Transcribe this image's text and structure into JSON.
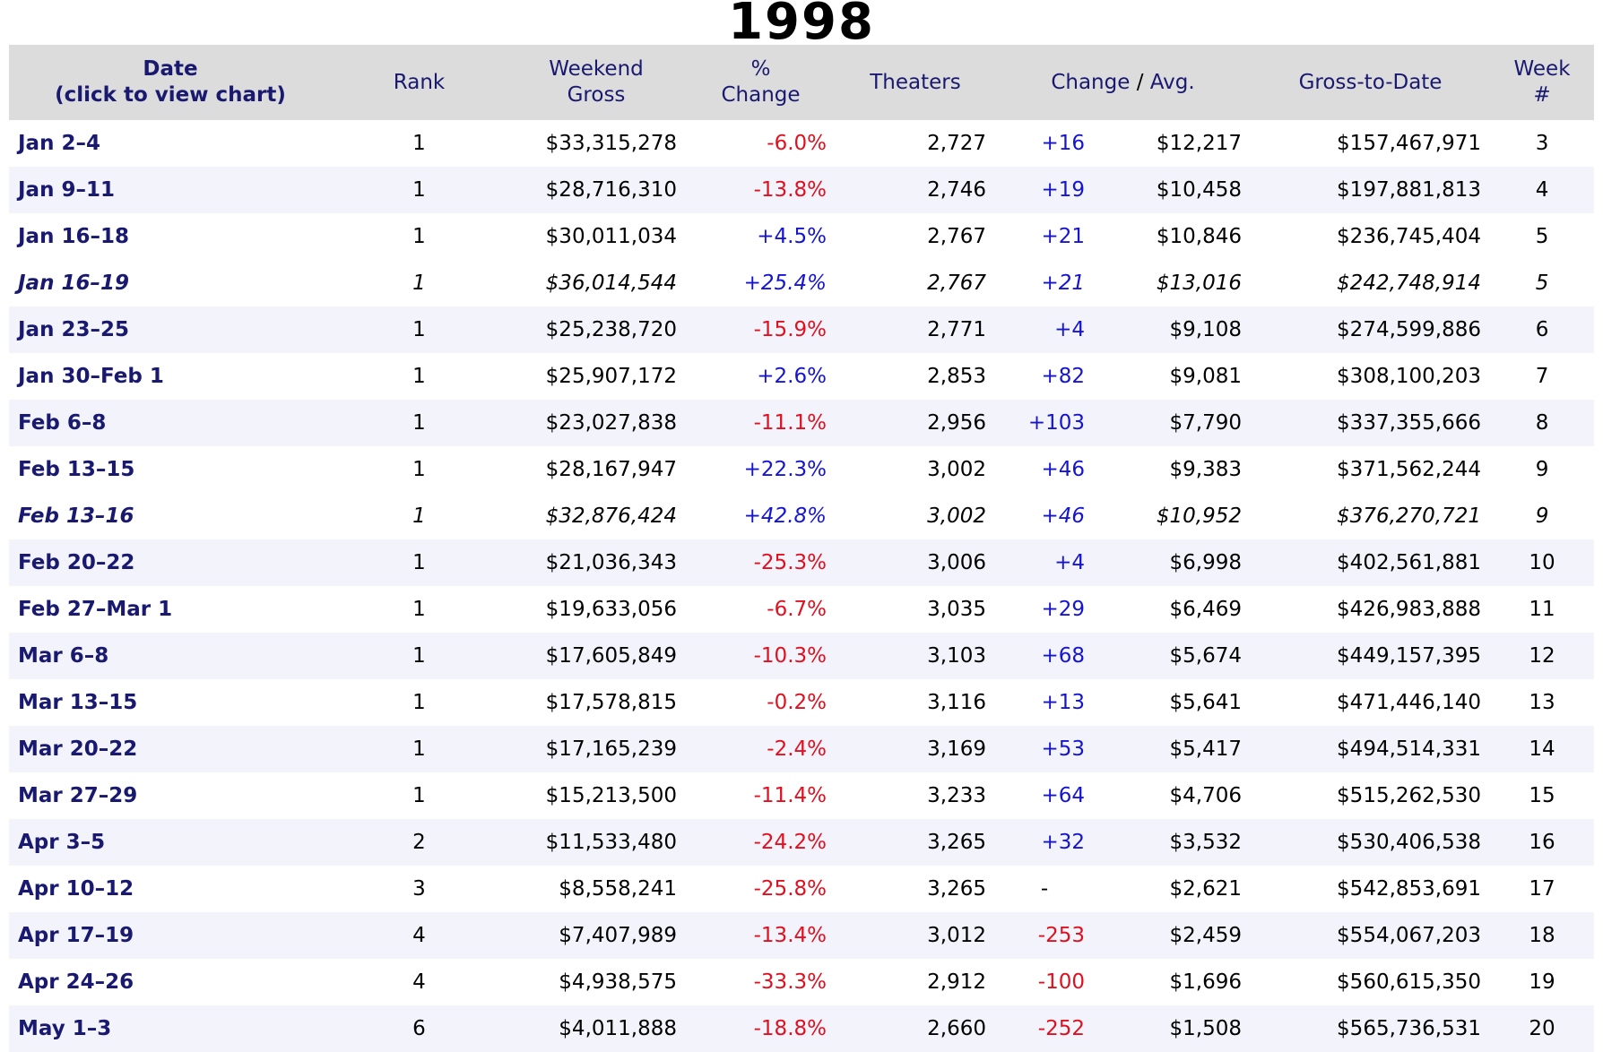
{
  "title": "1998",
  "colors": {
    "navy": "#191970",
    "pos": "#1414d2",
    "neg": "#e01020",
    "header-bg": "#dcdcdc",
    "stripe-bg": "#f3f3fb"
  },
  "columns": {
    "date": {
      "line1": "Date",
      "line2": "(click to view chart)"
    },
    "rank": "Rank",
    "weekend_gross": {
      "line1": "Weekend",
      "line2": "Gross"
    },
    "pct_change": {
      "line1": "%",
      "line2": "Change"
    },
    "theaters": "Theaters",
    "change_avg": {
      "change": "Change",
      "slash": " / ",
      "avg": "Avg."
    },
    "gross_to_date": "Gross-to-Date",
    "week": {
      "line1": "Week",
      "line2": "#"
    }
  },
  "rows": [
    {
      "date": "Jan 2–4",
      "rank": "1",
      "weekend_gross": "$33,315,278",
      "pct_change": "-6.0%",
      "theaters": "2,727",
      "change": "+16",
      "avg": "$12,217",
      "gross_to_date": "$157,467,971",
      "week": "3",
      "italic": false
    },
    {
      "date": "Jan 9–11",
      "rank": "1",
      "weekend_gross": "$28,716,310",
      "pct_change": "-13.8%",
      "theaters": "2,746",
      "change": "+19",
      "avg": "$10,458",
      "gross_to_date": "$197,881,813",
      "week": "4",
      "italic": false
    },
    {
      "date": "Jan 16–18",
      "rank": "1",
      "weekend_gross": "$30,011,034",
      "pct_change": "+4.5%",
      "theaters": "2,767",
      "change": "+21",
      "avg": "$10,846",
      "gross_to_date": "$236,745,404",
      "week": "5",
      "italic": false
    },
    {
      "date": "Jan 16–19",
      "rank": "1",
      "weekend_gross": "$36,014,544",
      "pct_change": "+25.4%",
      "theaters": "2,767",
      "change": "+21",
      "avg": "$13,016",
      "gross_to_date": "$242,748,914",
      "week": "5",
      "italic": true
    },
    {
      "date": "Jan 23–25",
      "rank": "1",
      "weekend_gross": "$25,238,720",
      "pct_change": "-15.9%",
      "theaters": "2,771",
      "change": "+4",
      "avg": "$9,108",
      "gross_to_date": "$274,599,886",
      "week": "6",
      "italic": false
    },
    {
      "date": "Jan 30–Feb 1",
      "rank": "1",
      "weekend_gross": "$25,907,172",
      "pct_change": "+2.6%",
      "theaters": "2,853",
      "change": "+82",
      "avg": "$9,081",
      "gross_to_date": "$308,100,203",
      "week": "7",
      "italic": false
    },
    {
      "date": "Feb 6–8",
      "rank": "1",
      "weekend_gross": "$23,027,838",
      "pct_change": "-11.1%",
      "theaters": "2,956",
      "change": "+103",
      "avg": "$7,790",
      "gross_to_date": "$337,355,666",
      "week": "8",
      "italic": false
    },
    {
      "date": "Feb 13–15",
      "rank": "1",
      "weekend_gross": "$28,167,947",
      "pct_change": "+22.3%",
      "theaters": "3,002",
      "change": "+46",
      "avg": "$9,383",
      "gross_to_date": "$371,562,244",
      "week": "9",
      "italic": false
    },
    {
      "date": "Feb 13–16",
      "rank": "1",
      "weekend_gross": "$32,876,424",
      "pct_change": "+42.8%",
      "theaters": "3,002",
      "change": "+46",
      "avg": "$10,952",
      "gross_to_date": "$376,270,721",
      "week": "9",
      "italic": true
    },
    {
      "date": "Feb 20–22",
      "rank": "1",
      "weekend_gross": "$21,036,343",
      "pct_change": "-25.3%",
      "theaters": "3,006",
      "change": "+4",
      "avg": "$6,998",
      "gross_to_date": "$402,561,881",
      "week": "10",
      "italic": false
    },
    {
      "date": "Feb 27–Mar 1",
      "rank": "1",
      "weekend_gross": "$19,633,056",
      "pct_change": "-6.7%",
      "theaters": "3,035",
      "change": "+29",
      "avg": "$6,469",
      "gross_to_date": "$426,983,888",
      "week": "11",
      "italic": false
    },
    {
      "date": "Mar 6–8",
      "rank": "1",
      "weekend_gross": "$17,605,849",
      "pct_change": "-10.3%",
      "theaters": "3,103",
      "change": "+68",
      "avg": "$5,674",
      "gross_to_date": "$449,157,395",
      "week": "12",
      "italic": false
    },
    {
      "date": "Mar 13–15",
      "rank": "1",
      "weekend_gross": "$17,578,815",
      "pct_change": "-0.2%",
      "theaters": "3,116",
      "change": "+13",
      "avg": "$5,641",
      "gross_to_date": "$471,446,140",
      "week": "13",
      "italic": false
    },
    {
      "date": "Mar 20–22",
      "rank": "1",
      "weekend_gross": "$17,165,239",
      "pct_change": "-2.4%",
      "theaters": "3,169",
      "change": "+53",
      "avg": "$5,417",
      "gross_to_date": "$494,514,331",
      "week": "14",
      "italic": false
    },
    {
      "date": "Mar 27–29",
      "rank": "1",
      "weekend_gross": "$15,213,500",
      "pct_change": "-11.4%",
      "theaters": "3,233",
      "change": "+64",
      "avg": "$4,706",
      "gross_to_date": "$515,262,530",
      "week": "15",
      "italic": false
    },
    {
      "date": "Apr 3–5",
      "rank": "2",
      "weekend_gross": "$11,533,480",
      "pct_change": "-24.2%",
      "theaters": "3,265",
      "change": "+32",
      "avg": "$3,532",
      "gross_to_date": "$530,406,538",
      "week": "16",
      "italic": false
    },
    {
      "date": "Apr 10–12",
      "rank": "3",
      "weekend_gross": "$8,558,241",
      "pct_change": "-25.8%",
      "theaters": "3,265",
      "change": "-",
      "avg": "$2,621",
      "gross_to_date": "$542,853,691",
      "week": "17",
      "italic": false
    },
    {
      "date": "Apr 17–19",
      "rank": "4",
      "weekend_gross": "$7,407,989",
      "pct_change": "-13.4%",
      "theaters": "3,012",
      "change": "-253",
      "avg": "$2,459",
      "gross_to_date": "$554,067,203",
      "week": "18",
      "italic": false
    },
    {
      "date": "Apr 24–26",
      "rank": "4",
      "weekend_gross": "$4,938,575",
      "pct_change": "-33.3%",
      "theaters": "2,912",
      "change": "-100",
      "avg": "$1,696",
      "gross_to_date": "$560,615,350",
      "week": "19",
      "italic": false
    },
    {
      "date": "May 1–3",
      "rank": "6",
      "weekend_gross": "$4,011,888",
      "pct_change": "-18.8%",
      "theaters": "2,660",
      "change": "-252",
      "avg": "$1,508",
      "gross_to_date": "$565,736,531",
      "week": "20",
      "italic": false
    }
  ]
}
